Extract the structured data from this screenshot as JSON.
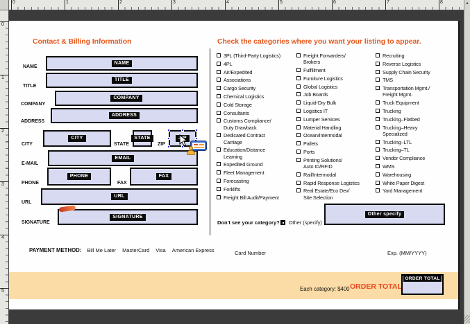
{
  "rulers": {
    "top": [
      "0",
      "1",
      "2",
      "3",
      "4",
      "5",
      "6",
      "7",
      "8"
    ],
    "left": [
      "0",
      "1",
      "2",
      "3",
      "4",
      "5"
    ]
  },
  "form": {
    "heading": "Contact & Billing Information",
    "selected_field": "ZIP",
    "fields": [
      {
        "side": "NAME",
        "tag": "NAME"
      },
      {
        "side": "TITLE",
        "tag": "TITLE"
      },
      {
        "side": "COMPANY",
        "tag": "COMPANY"
      },
      {
        "side": "ADDRESS",
        "tag": "ADDRESS"
      },
      {
        "side": "CITY",
        "tag": "CITY"
      },
      {
        "side": "STATE",
        "tag": "STATE"
      },
      {
        "side": "ZIP",
        "tag": "ZIP"
      },
      {
        "side": "E-MAIL",
        "tag": "EMAIL"
      },
      {
        "side": "PHONE",
        "tag": "PHONE"
      },
      {
        "side": "FAX",
        "tag": "FAX"
      },
      {
        "side": "URL",
        "tag": "URL"
      },
      {
        "side": "SIGNATURE",
        "tag": "SIGNATURE"
      }
    ]
  },
  "categories": {
    "heading": "Check the categories where you want your listing to appear.",
    "columns": [
      [
        {
          "lines": [
            "3PL (Third-Party Logistics)"
          ]
        },
        {
          "lines": [
            "4PL"
          ]
        },
        {
          "lines": [
            "Air/Expedited"
          ]
        },
        {
          "lines": [
            "Associations"
          ]
        },
        {
          "lines": [
            "Cargo Security"
          ]
        },
        {
          "lines": [
            "Chemical Logistics"
          ]
        },
        {
          "lines": [
            "Cold Storage"
          ]
        },
        {
          "lines": [
            "Consultants"
          ]
        },
        {
          "lines": [
            "Customs Compliance/",
            "Duty Drawback"
          ]
        },
        {
          "lines": [
            "Dedicated Contract",
            "Carriage"
          ]
        },
        {
          "lines": [
            "Education/Distance",
            "Learning"
          ]
        },
        {
          "lines": [
            "Expedited Ground"
          ]
        },
        {
          "lines": [
            "Fleet Management"
          ]
        },
        {
          "lines": [
            "Forecasting"
          ]
        },
        {
          "lines": [
            "Forklifts"
          ]
        },
        {
          "lines": [
            "Freight Bill Audit/Payment"
          ]
        }
      ],
      [
        {
          "lines": [
            "Freight Forwarders/",
            "Brokers"
          ]
        },
        {
          "lines": [
            "Fulfillment"
          ]
        },
        {
          "lines": [
            "Furniture Logistics"
          ]
        },
        {
          "lines": [
            "Global Logistics"
          ]
        },
        {
          "lines": [
            "Job Boards"
          ]
        },
        {
          "lines": [
            "Liquid-Dry Bulk"
          ]
        },
        {
          "lines": [
            "Logistics IT"
          ]
        },
        {
          "lines": [
            "Lumper Services"
          ]
        },
        {
          "lines": [
            "Material Handling"
          ]
        },
        {
          "lines": [
            "Ocean/Intermodal"
          ]
        },
        {
          "lines": [
            "Pallets"
          ]
        },
        {
          "lines": [
            "Ports"
          ]
        },
        {
          "lines": [
            "Printing Solutions/",
            "Auto ID/RFID"
          ]
        },
        {
          "lines": [
            "Rail/Intermodal"
          ]
        },
        {
          "lines": [
            "Rapid Response Logistics"
          ]
        },
        {
          "lines": [
            "Real Estate/Eco Dev/",
            "Site Selection"
          ]
        }
      ],
      [
        {
          "lines": [
            "Recruiting"
          ]
        },
        {
          "lines": [
            "Reverse Logistics"
          ]
        },
        {
          "lines": [
            "Supply Chain Security"
          ]
        },
        {
          "lines": [
            "TMS"
          ]
        },
        {
          "lines": [
            "Transportation Mgmt./",
            "Freight Mgmt."
          ]
        },
        {
          "lines": [
            "Truck Equipment"
          ]
        },
        {
          "lines": [
            "Trucking"
          ]
        },
        {
          "lines": [
            "Trucking–Flatbed"
          ]
        },
        {
          "lines": [
            "Trucking–Heavy",
            "Specialized"
          ]
        },
        {
          "lines": [
            "Trucking–LTL"
          ]
        },
        {
          "lines": [
            "Trucking–TL"
          ]
        },
        {
          "lines": [
            "Vendor Compliance"
          ]
        },
        {
          "lines": [
            "WMS"
          ]
        },
        {
          "lines": [
            "Warehousing"
          ]
        },
        {
          "lines": [
            "White Paper Digest"
          ]
        },
        {
          "lines": [
            "Yard Management"
          ]
        }
      ]
    ]
  },
  "other": {
    "question": "Don't see your category?",
    "checkbox_label": "Other (specify)",
    "checkbox_checked": true,
    "field_tag": "Other specify"
  },
  "payment": {
    "label": "PAYMENT METHOD:",
    "options": [
      "Bill Me Later",
      "MasterCard",
      "Visa",
      "American Express"
    ],
    "card_number_label": "Card Number",
    "exp_label": "Exp. (MM/YYYY)"
  },
  "totals": {
    "each_category": "Each category: $400",
    "order_total_label": "ORDER TOTAL: $",
    "field_tag": "ORDER TOTAL"
  },
  "colors": {
    "accent_orange": "#E5591F",
    "total_red": "#E8481C",
    "field_fill": "#D7DAF1",
    "band_fill": "#FBDCA6",
    "selection_blue": "#2626E8",
    "pasteboard": "#3B3B3B"
  }
}
